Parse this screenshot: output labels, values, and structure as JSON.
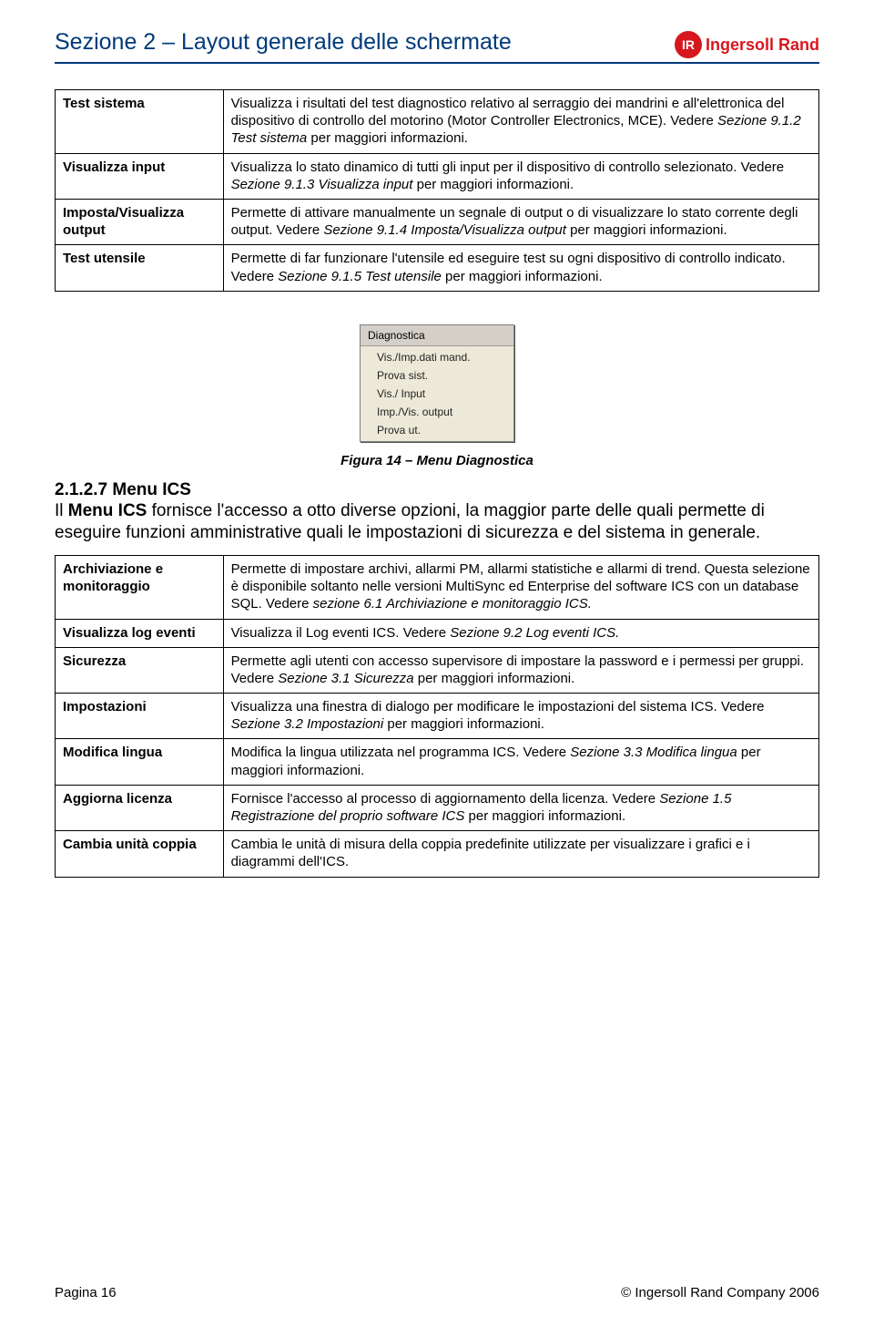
{
  "header": {
    "section_title": "Sezione 2 – Layout generale delle schermate",
    "logo_text": "Ingersoll Rand",
    "logo_ir": "IR"
  },
  "table1": {
    "rows": [
      {
        "label": "Test sistema",
        "desc": [
          {
            "text": "Visualizza i risultati del test diagnostico relativo al serraggio dei mandrini e all'elettronica del dispositivo di controllo del motorino (Motor Controller Electronics, MCE). Vedere ",
            "italic": false
          },
          {
            "text": "Sezione 9.1.2 Test sistema ",
            "italic": true
          },
          {
            "text": " per maggiori informazioni.",
            "italic": false
          }
        ]
      },
      {
        "label": "Visualizza input",
        "desc": [
          {
            "text": "Visualizza lo stato dinamico di tutti gli input per il dispositivo di controllo selezionato. Vedere ",
            "italic": false
          },
          {
            "text": "Sezione 9.1.3 Visualizza input ",
            "italic": true
          },
          {
            "text": " per maggiori informazioni.",
            "italic": false
          }
        ]
      },
      {
        "label": "Imposta/Visualizza output",
        "desc": [
          {
            "text": "Permette di attivare manualmente un segnale di output o di visualizzare lo stato corrente degli output. Vedere ",
            "italic": false
          },
          {
            "text": "Sezione 9.1.4 Imposta/Visualizza output ",
            "italic": true
          },
          {
            "text": " per maggiori informazioni.",
            "italic": false
          }
        ]
      },
      {
        "label": "Test utensile",
        "desc": [
          {
            "text": "Permette di far funzionare l'utensile ed eseguire test su ogni dispositivo di controllo indicato. Vedere ",
            "italic": false
          },
          {
            "text": "Sezione 9.1.5 Test utensile ",
            "italic": true
          },
          {
            "text": " per maggiori informazioni.",
            "italic": false
          }
        ]
      }
    ]
  },
  "menushot": {
    "title": "Diagnostica",
    "items": [
      "Vis./Imp.dati mand.",
      "Prova sist.",
      "Vis./ Input",
      "Imp./Vis. output",
      "Prova ut."
    ]
  },
  "figure_caption": "Figura 14 – Menu Diagnostica",
  "sub": {
    "heading_num": "2.1.2.7 Menu ICS",
    "para_pre": "Il ",
    "para_bold": "Menu ICS",
    "para_post": "  fornisce l'accesso a otto diverse opzioni, la maggior parte delle quali permette di eseguire funzioni amministrative quali le impostazioni di sicurezza e del sistema in generale."
  },
  "table2": {
    "rows": [
      {
        "label": "Archiviazione e monitoraggio",
        "desc": [
          {
            "text": "Permette di impostare archivi, allarmi PM, allarmi statistiche e allarmi di trend. Questa selezione è disponibile soltanto nelle versioni MultiSync ed Enterprise del software ICS con un database SQL. Vedere ",
            "italic": false
          },
          {
            "text": "sezione 6.1 Archiviazione e monitoraggio ICS.",
            "italic": true
          }
        ]
      },
      {
        "label": "Visualizza log eventi",
        "desc": [
          {
            "text": "Visualizza il Log eventi ICS. Vedere ",
            "italic": false
          },
          {
            "text": "Sezione 9.2 Log eventi ICS.",
            "italic": true
          }
        ]
      },
      {
        "label": "Sicurezza",
        "desc": [
          {
            "text": "Permette agli utenti con accesso supervisore di impostare la password e i permessi per gruppi. Vedere ",
            "italic": false
          },
          {
            "text": "Sezione 3.1 Sicurezza",
            "italic": true
          },
          {
            "text": " per maggiori informazioni.",
            "italic": false
          }
        ]
      },
      {
        "label": "Impostazioni",
        "desc": [
          {
            "text": "Visualizza una finestra di dialogo per modificare le impostazioni del sistema ICS. Vedere ",
            "italic": false
          },
          {
            "text": "Sezione 3.2 Impostazioni",
            "italic": true
          },
          {
            "text": " per maggiori informazioni.",
            "italic": false
          }
        ]
      },
      {
        "label": "Modifica lingua",
        "desc": [
          {
            "text": "Modifica la lingua utilizzata nel programma ICS. Vedere ",
            "italic": false
          },
          {
            "text": "Sezione 3.3 Modifica lingua ",
            "italic": true
          },
          {
            "text": " per maggiori informazioni.",
            "italic": false
          }
        ]
      },
      {
        "label": "Aggiorna licenza",
        "desc": [
          {
            "text": "Fornisce l'accesso al processo di aggiornamento della licenza. Vedere ",
            "italic": false
          },
          {
            "text": "Sezione 1.5 Registrazione del proprio software ICS",
            "italic": true
          },
          {
            "text": " per maggiori informazioni.",
            "italic": false
          }
        ]
      },
      {
        "label": "Cambia unità coppia",
        "desc": [
          {
            "text": "Cambia le unità di misura della coppia predefinite utilizzate per visualizzare i grafici e i diagrammi dell'ICS.",
            "italic": false
          }
        ]
      }
    ]
  },
  "footer": {
    "left": "Pagina 16",
    "right": "© Ingersoll Rand Company 2006"
  }
}
